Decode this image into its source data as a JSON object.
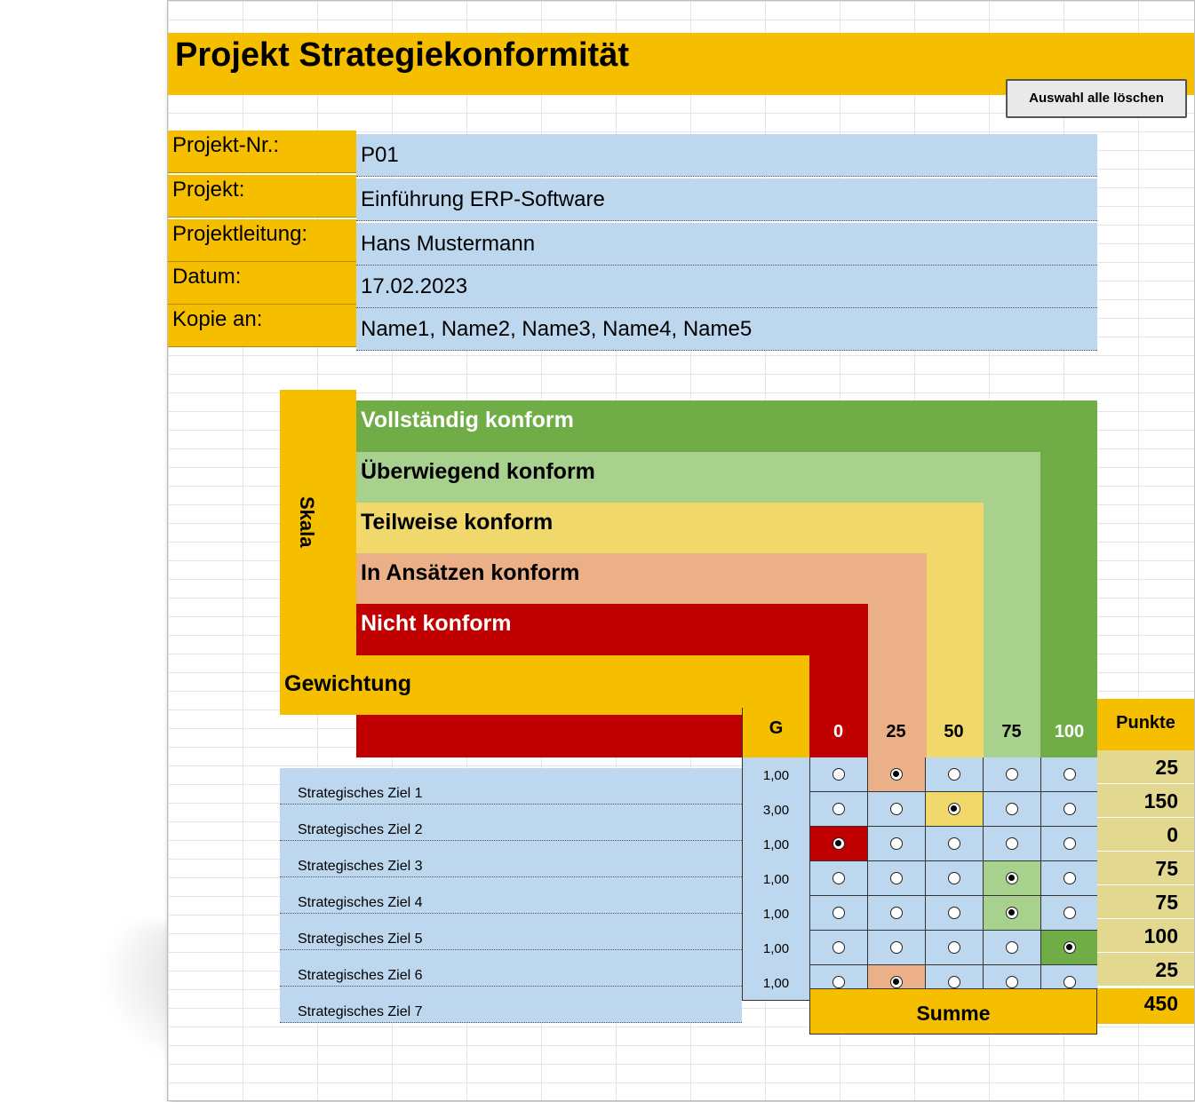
{
  "title": "Projekt Strategiekonformität",
  "clear_button": "Auswahl alle löschen",
  "info": [
    {
      "label": "Projekt-Nr.:",
      "value": "P01"
    },
    {
      "label": "Projekt:",
      "value": "Einführung ERP-Software"
    },
    {
      "label": "Projektleitung:",
      "value": "Hans Mustermann"
    },
    {
      "label": "Datum:",
      "value": "17.02.2023"
    },
    {
      "label": "Kopie an:",
      "value": "Name1, Name2, Name3, Name4, Name5"
    }
  ],
  "skala_label": "Skala",
  "scale": [
    {
      "label": "Vollständig konform",
      "color": "#70ad47",
      "text_color": "#ffffff"
    },
    {
      "label": "Überwiegend konform",
      "color": "#a9d18e",
      "text_color": "#000000"
    },
    {
      "label": "Teilweise konform",
      "color": "#f0d96a",
      "text_color": "#000000"
    },
    {
      "label": "In Ansätzen konform",
      "color": "#ebb087",
      "text_color": "#000000"
    },
    {
      "label": "Nicht konform",
      "color": "#c00000",
      "text_color": "#ffffff"
    }
  ],
  "gewichtung_label": "Gewichtung",
  "columns": {
    "g": "G",
    "scores": [
      "0",
      "25",
      "50",
      "75",
      "100"
    ],
    "punkte": "Punkte"
  },
  "rows": [
    {
      "label": "Strategisches Ziel 1",
      "g": "1,00",
      "selected": 1,
      "punkte": "25"
    },
    {
      "label": "Strategisches Ziel 2",
      "g": "3,00",
      "selected": 2,
      "punkte": "150"
    },
    {
      "label": "Strategisches Ziel 3",
      "g": "1,00",
      "selected": 0,
      "punkte": "0"
    },
    {
      "label": "Strategisches Ziel 4",
      "g": "1,00",
      "selected": 3,
      "punkte": "75"
    },
    {
      "label": "Strategisches Ziel 5",
      "g": "1,00",
      "selected": 3,
      "punkte": "75"
    },
    {
      "label": "Strategisches Ziel 6",
      "g": "1,00",
      "selected": 4,
      "punkte": "100"
    },
    {
      "label": "Strategisches Ziel 7",
      "g": "1,00",
      "selected": 1,
      "punkte": "25"
    }
  ],
  "summe_label": "Summe",
  "summe_value": "450"
}
